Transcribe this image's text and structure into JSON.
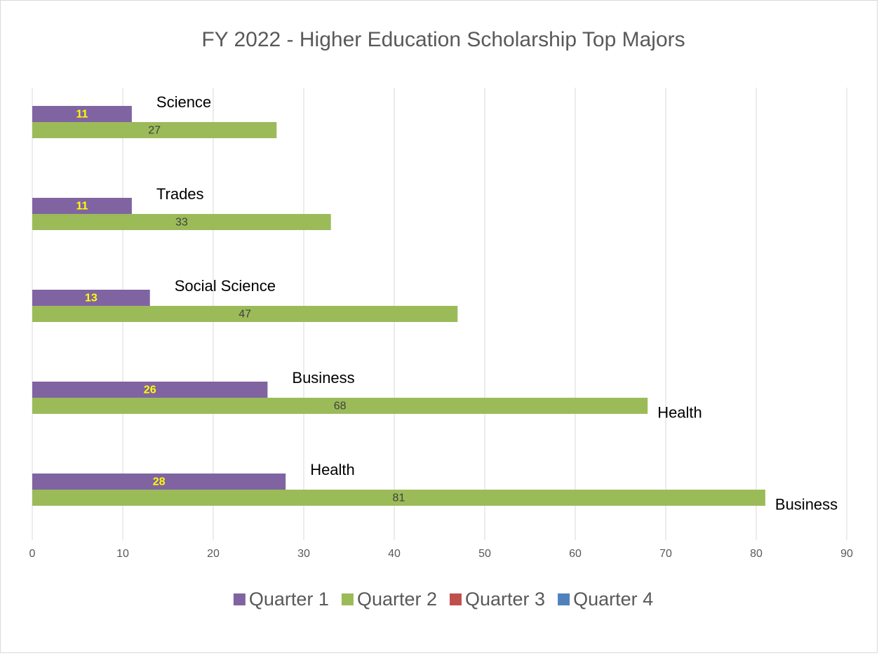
{
  "chart_data": {
    "type": "hbar",
    "title": "FY 2022 - Higher Education Scholarship Top Majors",
    "categories": [
      null,
      null,
      null,
      null,
      null
    ],
    "series": [
      {
        "name": "Quarter 1",
        "color": "#8064a2",
        "values": [
          11,
          11,
          13,
          26,
          28
        ],
        "point_labels": [
          "Science",
          "Trades",
          "Social Science",
          "Business",
          "Health"
        ]
      },
      {
        "name": "Quarter 2",
        "color": "#9bbb59",
        "values": [
          27,
          33,
          47,
          68,
          81
        ],
        "point_labels": [
          null,
          null,
          null,
          "Health",
          "Business"
        ]
      },
      {
        "name": "Quarter 3",
        "color": "#c0504d",
        "values": [
          null,
          null,
          null,
          null,
          null
        ]
      },
      {
        "name": "Quarter 4",
        "color": "#4f81bd",
        "values": [
          null,
          null,
          null,
          null,
          null
        ]
      }
    ],
    "xlim": [
      0,
      90
    ],
    "xticks": [
      0,
      10,
      20,
      30,
      40,
      50,
      60,
      70,
      80,
      90
    ],
    "grid": true,
    "legend": "bottom"
  }
}
